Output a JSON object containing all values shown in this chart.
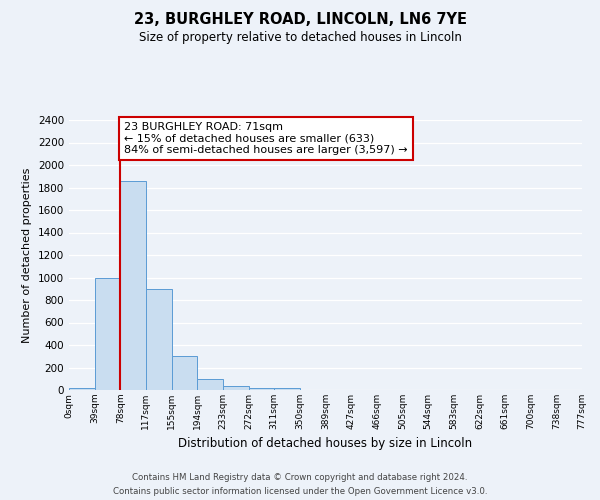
{
  "title": "23, BURGHLEY ROAD, LINCOLN, LN6 7YE",
  "subtitle": "Size of property relative to detached houses in Lincoln",
  "xlabel": "Distribution of detached houses by size in Lincoln",
  "ylabel": "Number of detached properties",
  "bin_labels": [
    "0sqm",
    "39sqm",
    "78sqm",
    "117sqm",
    "155sqm",
    "194sqm",
    "233sqm",
    "272sqm",
    "311sqm",
    "350sqm",
    "389sqm",
    "427sqm",
    "466sqm",
    "505sqm",
    "544sqm",
    "583sqm",
    "622sqm",
    "661sqm",
    "700sqm",
    "738sqm",
    "777sqm"
  ],
  "bar_heights": [
    20,
    1000,
    1860,
    900,
    300,
    100,
    40,
    15,
    15,
    0,
    0,
    0,
    0,
    0,
    0,
    0,
    0,
    0,
    0,
    0
  ],
  "bar_color": "#c9ddf0",
  "bar_edge_color": "#5b9bd5",
  "vline_x": 2,
  "vline_color": "#cc0000",
  "annotation_line1": "23 BURGHLEY ROAD: 71sqm",
  "annotation_line2": "← 15% of detached houses are smaller (633)",
  "annotation_line3": "84% of semi-detached houses are larger (3,597) →",
  "annotation_box_color": "#ffffff",
  "annotation_box_edge_color": "#cc0000",
  "ylim": [
    0,
    2400
  ],
  "yticks": [
    0,
    200,
    400,
    600,
    800,
    1000,
    1200,
    1400,
    1600,
    1800,
    2000,
    2200,
    2400
  ],
  "footer_line1": "Contains HM Land Registry data © Crown copyright and database right 2024.",
  "footer_line2": "Contains public sector information licensed under the Open Government Licence v3.0.",
  "background_color": "#edf2f9",
  "plot_bg_color": "#edf2f9",
  "grid_color": "#ffffff"
}
